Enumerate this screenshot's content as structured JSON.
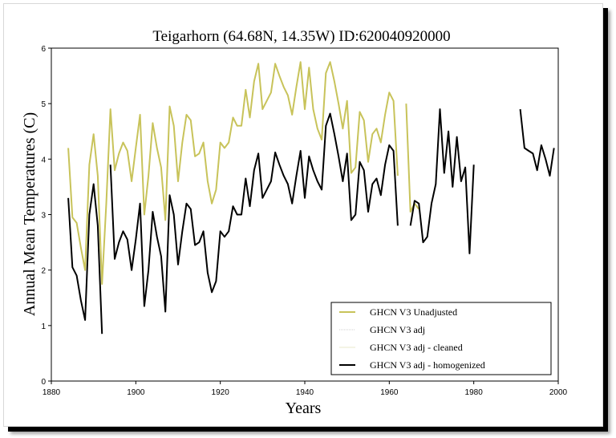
{
  "chart_data": {
    "type": "line",
    "title": "Teigarhorn (64.68N, 14.35W) ID:620040920000",
    "xlabel": "Years",
    "ylabel": "Annual Mean Temperatures (C)",
    "xlim": [
      1880,
      2000
    ],
    "ylim": [
      0,
      6
    ],
    "xticks": [
      "1880",
      "1900",
      "1920",
      "1940",
      "1960",
      "1980",
      "2000"
    ],
    "yticks": [
      "0",
      "1",
      "2",
      "3",
      "4",
      "5",
      "6"
    ],
    "grid": false,
    "legend_position": "bottom-right",
    "series": [
      {
        "name": "GHCN V3 Unadjusted",
        "color": "#c8c35a",
        "points": [
          [
            1884,
            4.2
          ],
          [
            1885,
            2.95
          ],
          [
            1886,
            2.85
          ],
          [
            1887,
            2.4
          ],
          [
            1888,
            2.0
          ],
          [
            1889,
            3.9
          ],
          [
            1890,
            4.45
          ],
          [
            1891,
            3.7
          ],
          [
            1892,
            1.75
          ],
          [
            1893,
            3.2
          ],
          [
            1894,
            4.9
          ],
          [
            1895,
            3.8
          ],
          [
            1896,
            4.1
          ],
          [
            1897,
            4.3
          ],
          [
            1898,
            4.15
          ],
          [
            1899,
            3.6
          ],
          [
            1900,
            4.2
          ],
          [
            1901,
            4.8
          ],
          [
            1902,
            3.0
          ],
          [
            1903,
            3.7
          ],
          [
            1904,
            4.65
          ],
          [
            1905,
            4.2
          ],
          [
            1906,
            3.85
          ],
          [
            1907,
            2.9
          ],
          [
            1908,
            4.95
          ],
          [
            1909,
            4.6
          ],
          [
            1910,
            3.6
          ],
          [
            1911,
            4.3
          ],
          [
            1912,
            4.8
          ],
          [
            1913,
            4.7
          ],
          [
            1914,
            4.05
          ],
          [
            1915,
            4.1
          ],
          [
            1916,
            4.3
          ],
          [
            1917,
            3.6
          ],
          [
            1918,
            3.2
          ],
          [
            1919,
            3.45
          ],
          [
            1920,
            4.3
          ],
          [
            1921,
            4.2
          ],
          [
            1922,
            4.3
          ],
          [
            1923,
            4.75
          ],
          [
            1924,
            4.6
          ],
          [
            1925,
            4.6
          ],
          [
            1926,
            5.25
          ],
          [
            1927,
            4.75
          ],
          [
            1928,
            5.4
          ],
          [
            1929,
            5.72
          ],
          [
            1930,
            4.9
          ],
          [
            1931,
            5.05
          ],
          [
            1932,
            5.2
          ],
          [
            1933,
            5.72
          ],
          [
            1934,
            5.5
          ],
          [
            1935,
            5.3
          ],
          [
            1936,
            5.15
          ],
          [
            1937,
            4.8
          ],
          [
            1938,
            5.3
          ],
          [
            1939,
            5.75
          ],
          [
            1940,
            4.9
          ],
          [
            1941,
            5.65
          ],
          [
            1942,
            4.9
          ],
          [
            1943,
            4.55
          ],
          [
            1944,
            4.35
          ],
          [
            1945,
            5.55
          ],
          [
            1946,
            5.75
          ],
          [
            1947,
            5.4
          ],
          [
            1948,
            5.0
          ],
          [
            1949,
            4.55
          ],
          [
            1950,
            5.05
          ],
          [
            1951,
            3.75
          ],
          [
            1952,
            3.85
          ],
          [
            1953,
            4.85
          ],
          [
            1954,
            4.7
          ],
          [
            1955,
            3.95
          ],
          [
            1956,
            4.45
          ],
          [
            1957,
            4.55
          ],
          [
            1958,
            4.3
          ],
          [
            1959,
            4.8
          ],
          [
            1960,
            5.2
          ],
          [
            1961,
            5.05
          ],
          [
            1962,
            3.7
          ],
          [
            null,
            null
          ],
          [
            1964,
            5.0
          ],
          [
            1965,
            3.05
          ],
          [
            1966,
            3.2
          ],
          [
            1967,
            3.1
          ]
        ]
      },
      {
        "name": "GHCN V3 adj",
        "color": "#cfcfcf",
        "points": []
      },
      {
        "name": "GHCN V3 adj - cleaned",
        "color": "#e8eacb",
        "points": []
      },
      {
        "name": "GHCN V3 adj - homogenized",
        "color": "#000000",
        "points": [
          [
            1884,
            3.3
          ],
          [
            1885,
            2.05
          ],
          [
            1886,
            1.9
          ],
          [
            1887,
            1.45
          ],
          [
            1888,
            1.1
          ],
          [
            1889,
            3.0
          ],
          [
            1890,
            3.55
          ],
          [
            1891,
            2.8
          ],
          [
            1892,
            0.85
          ],
          [
            null,
            null
          ],
          [
            1894,
            3.9
          ],
          [
            1895,
            2.2
          ],
          [
            1896,
            2.5
          ],
          [
            1897,
            2.7
          ],
          [
            1898,
            2.55
          ],
          [
            1899,
            2.0
          ],
          [
            1900,
            2.55
          ],
          [
            1901,
            3.2
          ],
          [
            1902,
            1.35
          ],
          [
            1903,
            2.0
          ],
          [
            1904,
            3.05
          ],
          [
            1905,
            2.6
          ],
          [
            1906,
            2.25
          ],
          [
            1907,
            1.25
          ],
          [
            1908,
            3.35
          ],
          [
            1909,
            3.0
          ],
          [
            1910,
            2.1
          ],
          [
            1911,
            2.7
          ],
          [
            1912,
            3.2
          ],
          [
            1913,
            3.1
          ],
          [
            1914,
            2.45
          ],
          [
            1915,
            2.5
          ],
          [
            1916,
            2.7
          ],
          [
            1917,
            1.95
          ],
          [
            1918,
            1.6
          ],
          [
            1919,
            1.8
          ],
          [
            1920,
            2.7
          ],
          [
            1921,
            2.6
          ],
          [
            1922,
            2.7
          ],
          [
            1923,
            3.15
          ],
          [
            1924,
            3.0
          ],
          [
            1925,
            3.0
          ],
          [
            1926,
            3.65
          ],
          [
            1927,
            3.15
          ],
          [
            1928,
            3.8
          ],
          [
            1929,
            4.1
          ],
          [
            1930,
            3.3
          ],
          [
            1931,
            3.45
          ],
          [
            1932,
            3.6
          ],
          [
            1933,
            4.12
          ],
          [
            1934,
            3.9
          ],
          [
            1935,
            3.7
          ],
          [
            1936,
            3.55
          ],
          [
            1937,
            3.2
          ],
          [
            1938,
            3.7
          ],
          [
            1939,
            4.15
          ],
          [
            1940,
            3.3
          ],
          [
            1941,
            4.05
          ],
          [
            1942,
            3.8
          ],
          [
            1943,
            3.6
          ],
          [
            1944,
            3.45
          ],
          [
            1945,
            4.6
          ],
          [
            1946,
            4.82
          ],
          [
            1947,
            4.45
          ],
          [
            1948,
            4.05
          ],
          [
            1949,
            3.6
          ],
          [
            1950,
            4.1
          ],
          [
            1951,
            2.9
          ],
          [
            1952,
            3.0
          ],
          [
            1953,
            3.95
          ],
          [
            1954,
            3.8
          ],
          [
            1955,
            3.05
          ],
          [
            1956,
            3.55
          ],
          [
            1957,
            3.65
          ],
          [
            1958,
            3.35
          ],
          [
            1959,
            3.9
          ],
          [
            1960,
            4.25
          ],
          [
            1961,
            4.15
          ],
          [
            1962,
            2.8
          ],
          [
            null,
            null
          ],
          [
            1965,
            2.8
          ],
          [
            1966,
            3.25
          ],
          [
            1967,
            3.2
          ],
          [
            1968,
            2.5
          ],
          [
            1969,
            2.6
          ],
          [
            1970,
            3.2
          ],
          [
            1971,
            3.55
          ],
          [
            1972,
            4.9
          ],
          [
            1973,
            3.75
          ],
          [
            1974,
            4.5
          ],
          [
            1975,
            3.5
          ],
          [
            1976,
            4.4
          ],
          [
            1977,
            3.6
          ],
          [
            1978,
            3.85
          ],
          [
            1979,
            2.3
          ],
          [
            1980,
            3.9
          ],
          [
            null,
            null
          ],
          [
            1991,
            4.9
          ],
          [
            1992,
            4.2
          ],
          [
            1993,
            4.15
          ],
          [
            1994,
            4.1
          ],
          [
            1995,
            3.8
          ],
          [
            1996,
            4.25
          ],
          [
            1997,
            4.0
          ],
          [
            1998,
            3.7
          ],
          [
            1999,
            4.2
          ]
        ]
      }
    ]
  }
}
